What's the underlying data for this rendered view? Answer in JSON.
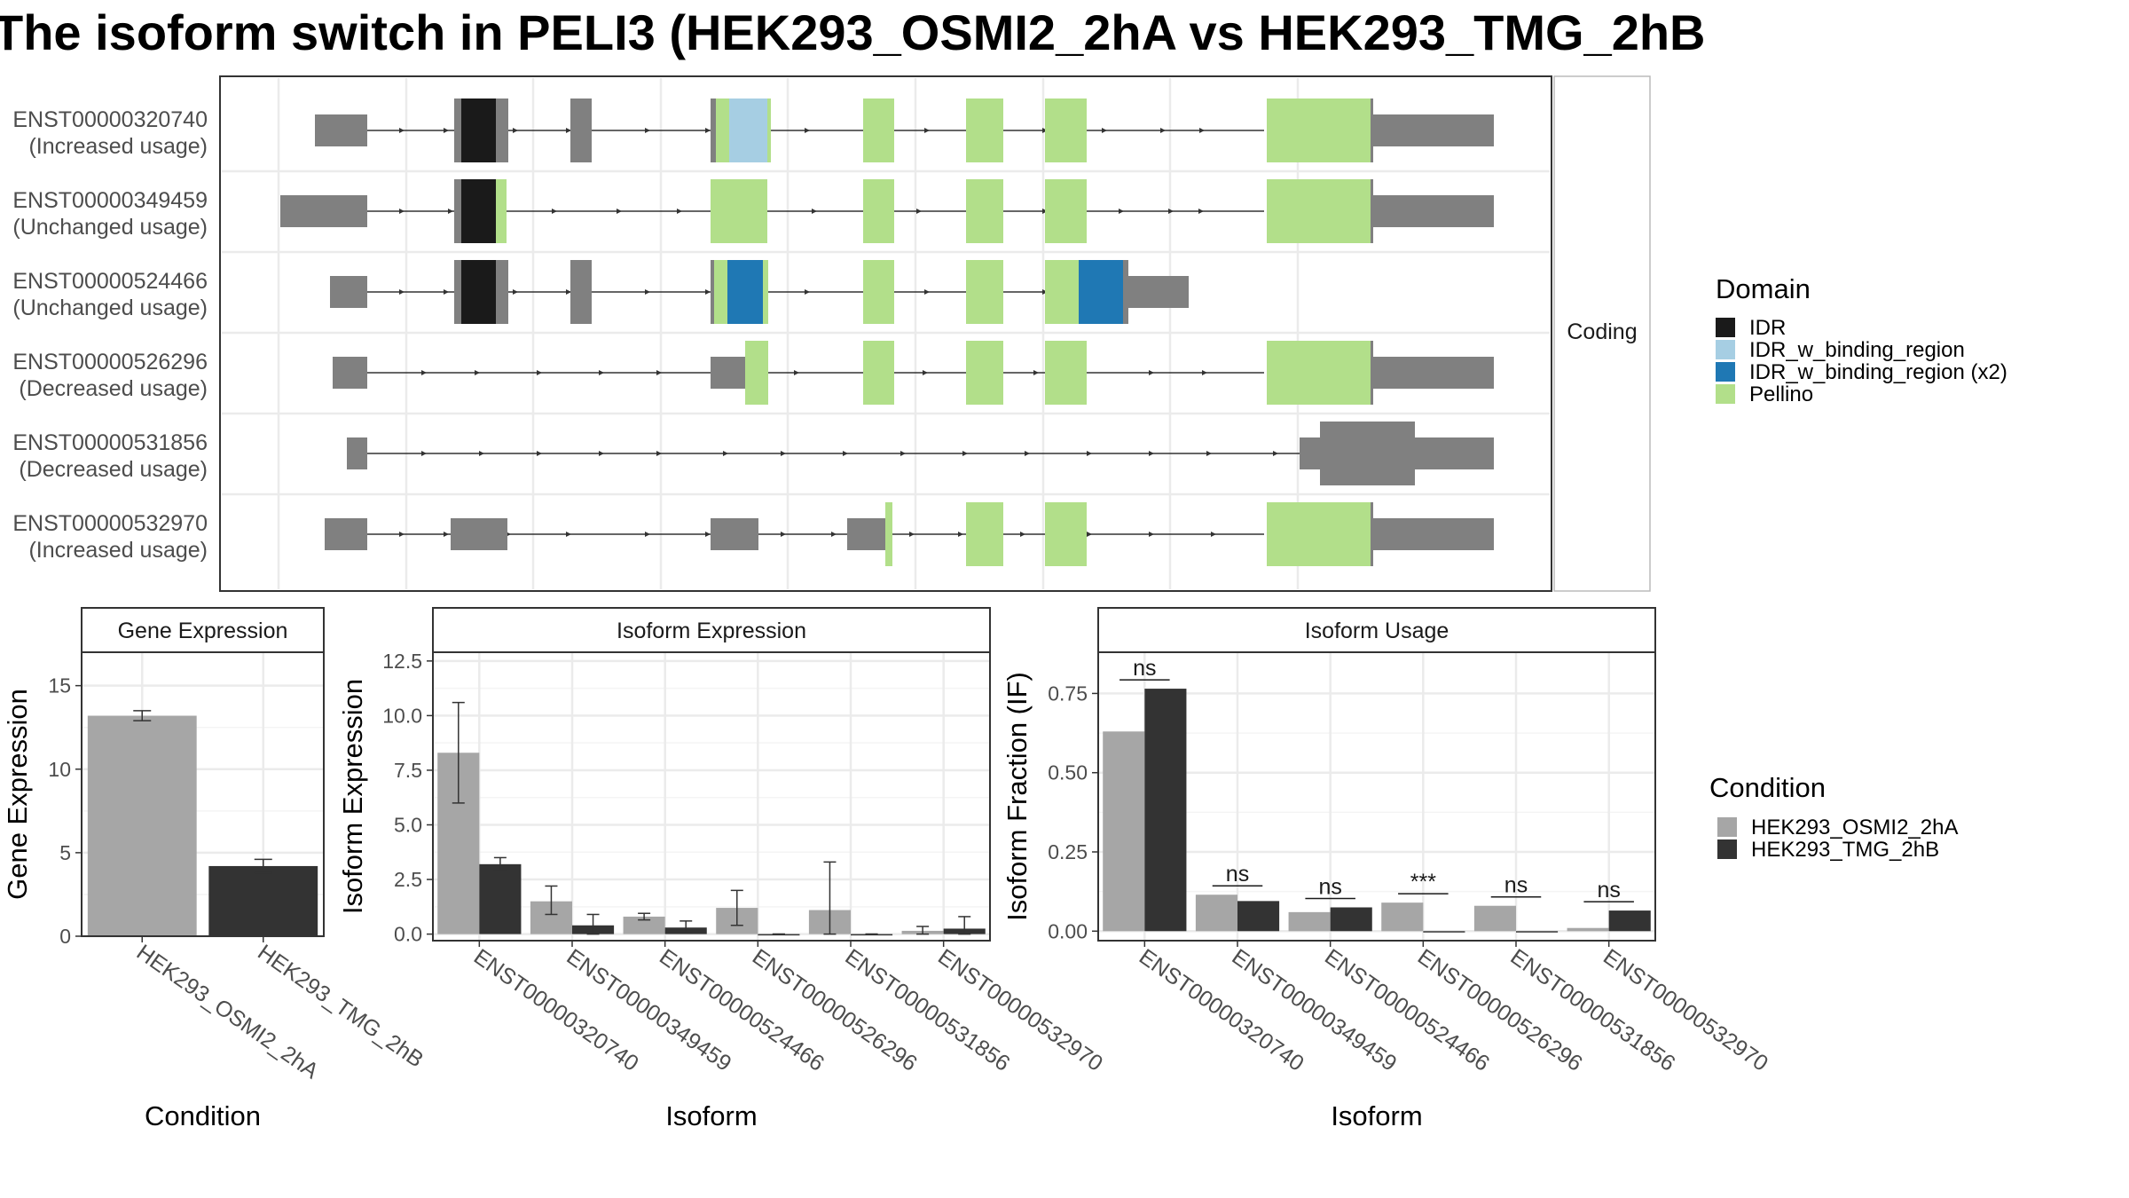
{
  "title": "The isoform switch in PELI3 (HEK293_OSMI2_2hA vs HEK293_TMG_2hB",
  "colors": {
    "utr": "#808080",
    "IDR": "#1a1a1a",
    "IDR_w_binding_region": "#a6cee3",
    "IDR_w_binding_region (x2)": "#1f78b4",
    "Pellino": "#b2df8a",
    "cond1": "#a6a6a6",
    "cond2": "#333333",
    "panel_border": "#333333",
    "strip_bg": "#ffffff",
    "grid": "#ebebeb"
  },
  "isoform_structure": {
    "strip_label": "Coding",
    "transcripts": [
      {
        "id": "ENST00000320740",
        "usage": "(Increased usage)"
      },
      {
        "id": "ENST00000349459",
        "usage": "(Unchanged usage)"
      },
      {
        "id": "ENST00000524466",
        "usage": "(Unchanged usage)"
      },
      {
        "id": "ENST00000526296",
        "usage": "(Decreased usage)"
      },
      {
        "id": "ENST00000531856",
        "usage": "(Decreased usage)"
      },
      {
        "id": "ENST00000532970",
        "usage": "(Increased usage)"
      }
    ],
    "legend_title": "Domain",
    "legend_items": [
      "IDR",
      "IDR_w_binding_region",
      "IDR_w_binding_region (x2)",
      "Pellino"
    ]
  },
  "chart_data": [
    {
      "type": "bar",
      "title": "Gene Expression",
      "xlabel": "Condition",
      "ylabel": "Gene Expression",
      "categories": [
        "HEK293_OSMI2_2hA",
        "HEK293_TMG_2hB"
      ],
      "values": [
        13.2,
        4.2
      ],
      "errors": [
        [
          12.9,
          13.5
        ],
        [
          3.8,
          4.6
        ]
      ],
      "ylim": [
        0,
        17
      ],
      "yticks": [
        "0",
        "5",
        "10",
        "15"
      ],
      "ytick_values": [
        0,
        5,
        10,
        15
      ]
    },
    {
      "type": "bar",
      "title": "Isoform Expression",
      "xlabel": "Isoform",
      "ylabel": "Isoform Expression",
      "categories": [
        "ENST00000320740",
        "ENST00000349459",
        "ENST00000524466",
        "ENST00000526296",
        "ENST00000531856",
        "ENST00000532970"
      ],
      "series": [
        {
          "name": "HEK293_OSMI2_2hA",
          "values": [
            8.3,
            1.5,
            0.8,
            1.2,
            1.1,
            0.15
          ],
          "errors": [
            [
              6.0,
              10.6
            ],
            [
              0.9,
              2.2
            ],
            [
              0.65,
              0.95
            ],
            [
              0.4,
              2.0
            ],
            [
              0.0,
              3.3
            ],
            [
              0.0,
              0.35
            ]
          ]
        },
        {
          "name": "HEK293_TMG_2hB",
          "values": [
            3.2,
            0.4,
            0.3,
            0.0,
            0.0,
            0.25
          ],
          "errors": [
            [
              2.9,
              3.5
            ],
            [
              0.0,
              0.9
            ],
            [
              0.05,
              0.6
            ],
            [
              0.0,
              0.0
            ],
            [
              0.0,
              0.0
            ],
            [
              0.0,
              0.8
            ]
          ]
        }
      ],
      "ylim": [
        -0.3,
        12.9
      ],
      "yticks": [
        "0.0",
        "2.5",
        "5.0",
        "7.5",
        "10.0",
        "12.5"
      ],
      "ytick_values": [
        0,
        2.5,
        5,
        7.5,
        10,
        12.5
      ]
    },
    {
      "type": "bar",
      "title": "Isoform Usage",
      "xlabel": "Isoform",
      "ylabel": "Isoform Fraction (IF)",
      "categories": [
        "ENST00000320740",
        "ENST00000349459",
        "ENST00000524466",
        "ENST00000526296",
        "ENST00000531856",
        "ENST00000532970"
      ],
      "series": [
        {
          "name": "HEK293_OSMI2_2hA",
          "values": [
            0.63,
            0.115,
            0.06,
            0.09,
            0.08,
            0.01
          ]
        },
        {
          "name": "HEK293_TMG_2hB",
          "values": [
            0.765,
            0.095,
            0.075,
            0.0,
            0.0,
            0.065
          ]
        }
      ],
      "significance": [
        "ns",
        "ns",
        "ns",
        "***",
        "ns",
        "ns"
      ],
      "ylim": [
        -0.03,
        0.88
      ],
      "yticks": [
        "0.00",
        "0.25",
        "0.50",
        "0.75"
      ],
      "ytick_values": [
        0,
        0.25,
        0.5,
        0.75
      ]
    }
  ],
  "condition_legend": {
    "title": "Condition",
    "items": [
      "HEK293_OSMI2_2hA",
      "HEK293_TMG_2hB"
    ]
  }
}
